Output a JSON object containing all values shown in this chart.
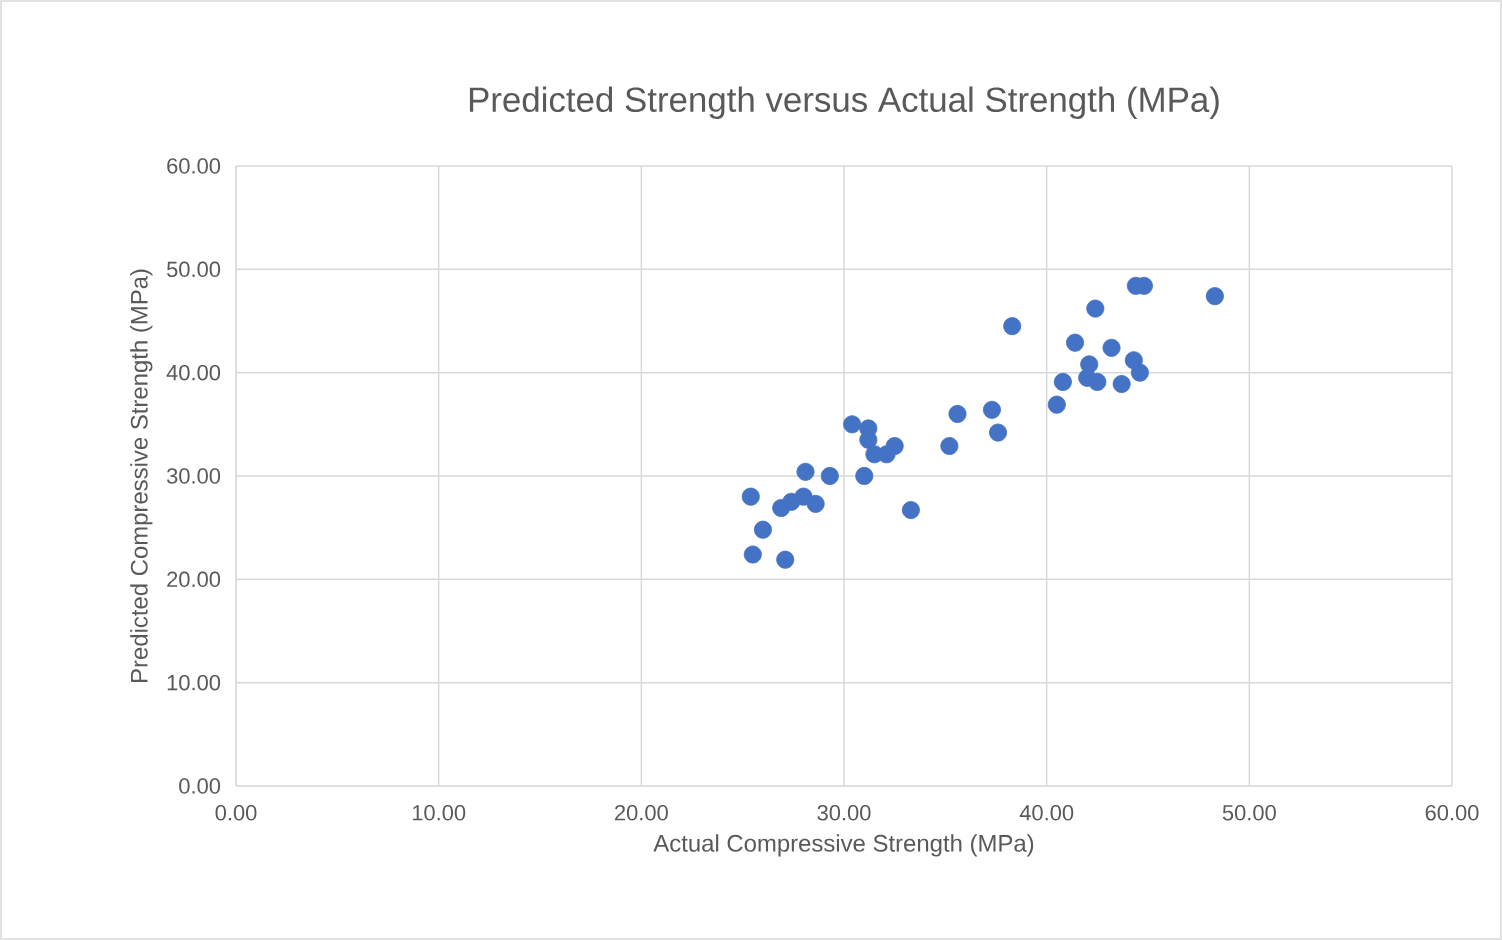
{
  "chart_data": {
    "type": "scatter",
    "title": "Predicted Strength versus Actual Strength (MPa)",
    "xlabel": "Actual Compressive Strength (MPa)",
    "ylabel": "Predicted Compressive Strength (MPa)",
    "x": [
      25.4,
      26.0,
      25.5,
      26.9,
      27.4,
      27.1,
      28.0,
      28.1,
      28.6,
      29.3,
      30.4,
      31.2,
      31.2,
      31.0,
      31.5,
      32.1,
      32.5,
      33.3,
      35.2,
      35.6,
      37.3,
      37.6,
      38.3,
      40.5,
      40.8,
      41.4,
      42.1,
      42.0,
      42.5,
      42.4,
      43.2,
      43.7,
      44.3,
      44.6,
      44.4,
      44.8,
      48.3
    ],
    "values": [
      28.0,
      24.8,
      22.4,
      26.9,
      27.5,
      21.9,
      28.0,
      30.4,
      27.3,
      30.0,
      35.0,
      34.6,
      33.5,
      30.0,
      32.1,
      32.1,
      32.9,
      26.7,
      32.9,
      36.0,
      36.4,
      34.2,
      44.5,
      36.9,
      39.1,
      42.9,
      40.8,
      39.5,
      39.1,
      46.2,
      42.4,
      38.9,
      41.2,
      40.0,
      48.4,
      48.4,
      47.4
    ],
    "color": "#4472c4",
    "marker": "circle",
    "grid": true,
    "xlim": [
      0,
      60
    ],
    "ylim": [
      0,
      60
    ],
    "xticks": [
      {
        "value": 0,
        "label": "0.00"
      },
      {
        "value": 10,
        "label": "10.00"
      },
      {
        "value": 20,
        "label": "20.00"
      },
      {
        "value": 30,
        "label": "30.00"
      },
      {
        "value": 40,
        "label": "40.00"
      },
      {
        "value": 50,
        "label": "50.00"
      },
      {
        "value": 60,
        "label": "60.00"
      }
    ],
    "yticks": [
      {
        "value": 0,
        "label": "0.00"
      },
      {
        "value": 10,
        "label": "10.00"
      },
      {
        "value": 20,
        "label": "20.00"
      },
      {
        "value": 30,
        "label": "30.00"
      },
      {
        "value": 40,
        "label": "40.00"
      },
      {
        "value": 50,
        "label": "50.00"
      },
      {
        "value": 60,
        "label": "60.00"
      }
    ]
  }
}
